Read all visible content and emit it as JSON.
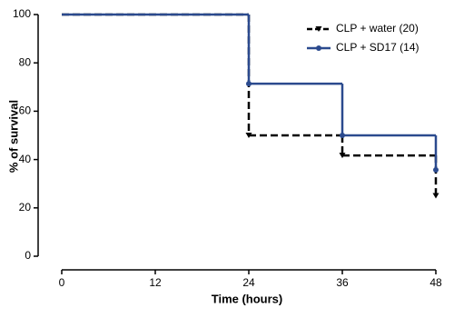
{
  "chart_data": {
    "type": "step",
    "xlabel": "Time (hours)",
    "ylabel": "% of survival",
    "x": [
      0,
      24,
      36,
      48
    ],
    "series": [
      {
        "name": "CLP + water (20)",
        "color": "#000000",
        "dashed": true,
        "marker": "triangle-down",
        "values": [
          100,
          50,
          41.7,
          25
        ]
      },
      {
        "name": "CLP + SD17 (14)",
        "color": "#2b4a8e",
        "dashed": false,
        "marker": "circle",
        "values": [
          100,
          71.4,
          50,
          35.7
        ]
      }
    ],
    "xlim": [
      0,
      48
    ],
    "xticks": [
      0,
      12,
      24,
      36,
      48
    ],
    "ylim": [
      0,
      100
    ],
    "yticks": [
      0,
      20,
      40,
      60,
      80,
      100
    ],
    "legend": "upper-right"
  }
}
